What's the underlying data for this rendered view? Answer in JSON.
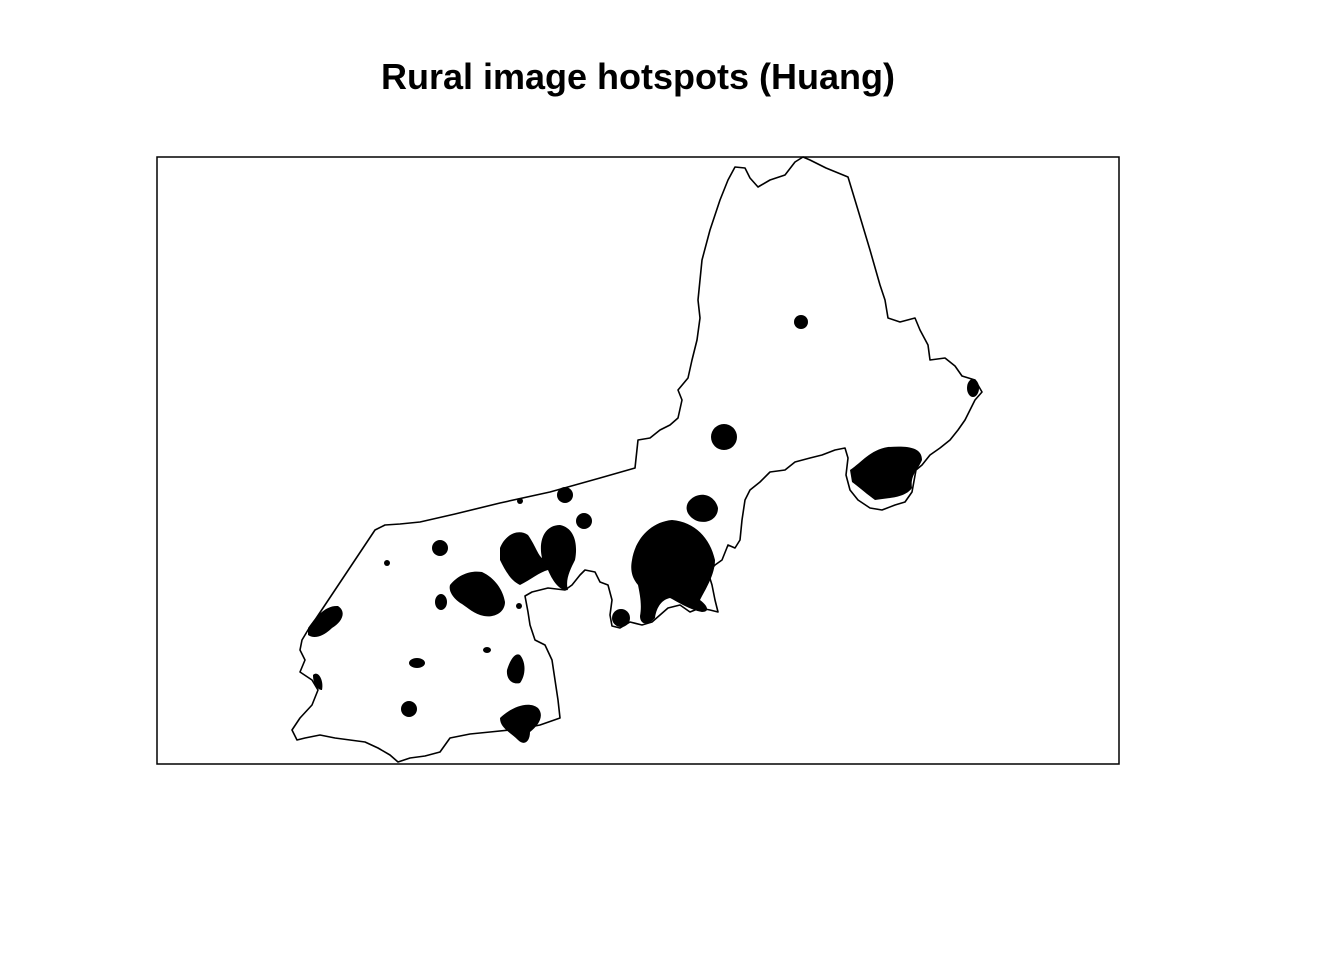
{
  "map": {
    "title": "Rural image hotspots (Huang)",
    "colors": {
      "background": "#ffffff",
      "outline": "#000000",
      "hotspot": "#000000"
    }
  }
}
